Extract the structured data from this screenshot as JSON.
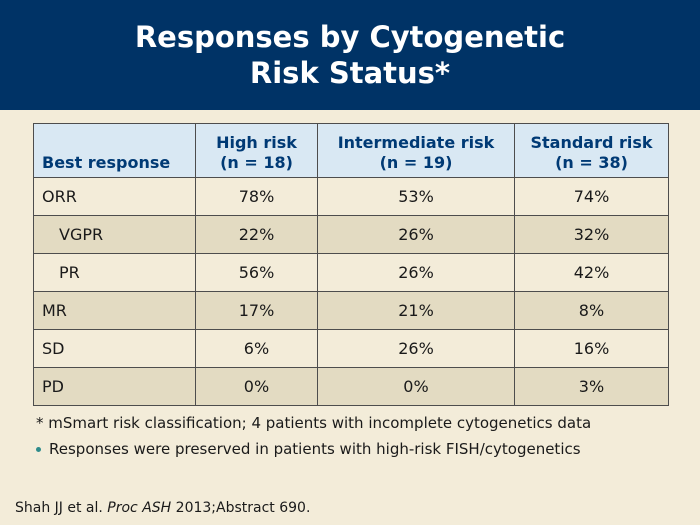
{
  "title": "Responses by Cytogenetic\nRisk Status*",
  "table": {
    "header": {
      "col0": "Best response",
      "col1": [
        "High risk",
        "(n = 18)"
      ],
      "col2": [
        "Intermediate risk",
        "(n = 19)"
      ],
      "col3": [
        "Standard risk",
        "(n = 38)"
      ]
    },
    "rows": [
      {
        "label": "ORR",
        "high": "78%",
        "intermediate": "53%",
        "standard": "74%"
      },
      {
        "label": "VGPR",
        "high": "22%",
        "intermediate": "26%",
        "standard": "32%"
      },
      {
        "label": "PR",
        "high": "56%",
        "intermediate": "26%",
        "standard": "42%"
      },
      {
        "label": "MR",
        "high": "17%",
        "intermediate": "21%",
        "standard": "8%"
      },
      {
        "label": "SD",
        "high": "6%",
        "intermediate": "26%",
        "standard": "16%"
      },
      {
        "label": "PD",
        "high": "0%",
        "intermediate": "0%",
        "standard": "3%"
      }
    ]
  },
  "footnote": "* mSmart risk classification; 4 patients with incomplete cytogenetics data",
  "bullet": "Responses were preserved in patients with high-risk FISH/cytogenetics",
  "citation": {
    "authors": "Shah JJ et al.",
    "journal": "Proc ASH",
    "details": "2013;Abstract 690."
  },
  "colors": {
    "header_bg": "#003366",
    "table_header_bg": "#d9e8f3",
    "row_alt_bg": "#e3dbc2",
    "page_bg": "#f3ecd9",
    "bullet": "#2e8b8b"
  }
}
